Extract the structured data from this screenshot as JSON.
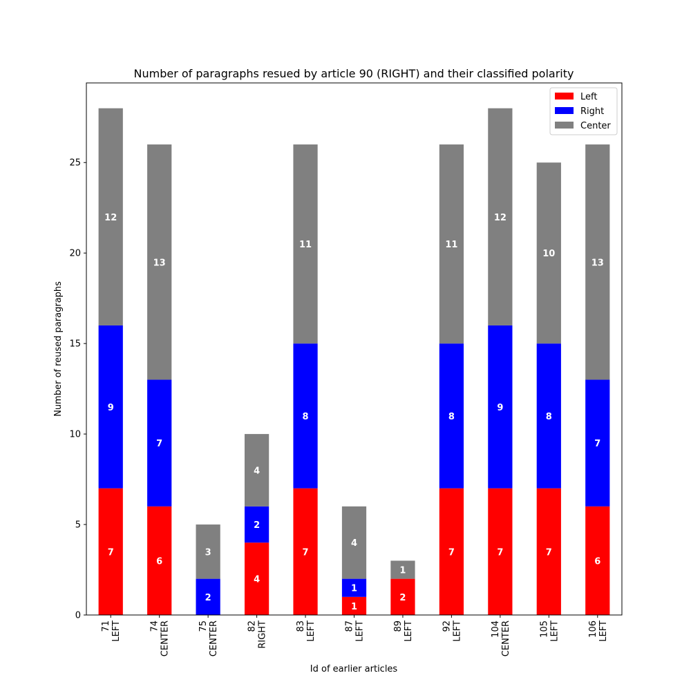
{
  "chart_data": {
    "type": "bar",
    "stacked": true,
    "title": "Number of paragraphs resued by article 90 (RIGHT) and their classified polarity",
    "xlabel": "Id of earlier articles",
    "ylabel": "Number of reused paragraphs",
    "ylim": [
      0,
      29.4
    ],
    "yticks": [
      0,
      5,
      10,
      15,
      20,
      25
    ],
    "grid": false,
    "legend_position": "top-right",
    "categories": [
      [
        "71",
        "LEFT"
      ],
      [
        "74",
        "CENTER"
      ],
      [
        "75",
        "CENTER"
      ],
      [
        "82",
        "RIGHT"
      ],
      [
        "83",
        "LEFT"
      ],
      [
        "87",
        "LEFT"
      ],
      [
        "89",
        "LEFT"
      ],
      [
        "92",
        "LEFT"
      ],
      [
        "104",
        "CENTER"
      ],
      [
        "105",
        "LEFT"
      ],
      [
        "106",
        "LEFT"
      ]
    ],
    "series": [
      {
        "name": "Left",
        "color": "#ff0000",
        "values": [
          7,
          6,
          0,
          4,
          7,
          1,
          2,
          7,
          7,
          7,
          6
        ]
      },
      {
        "name": "Right",
        "color": "#0000ff",
        "values": [
          9,
          7,
          2,
          2,
          8,
          1,
          0,
          8,
          9,
          8,
          7
        ]
      },
      {
        "name": "Center",
        "color": "#808080",
        "values": [
          12,
          13,
          3,
          4,
          11,
          4,
          1,
          11,
          12,
          10,
          13
        ]
      }
    ]
  }
}
